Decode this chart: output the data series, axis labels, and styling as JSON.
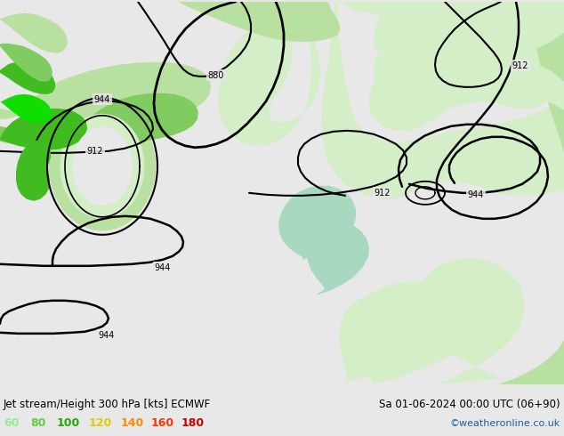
{
  "title_left": "Jet stream/Height 300 hPa [kts] ECMWF",
  "title_right": "Sa 01-06-2024 00:00 UTC (06+90)",
  "credit": "©weatheronline.co.uk",
  "legend_values": [
    "60",
    "80",
    "100",
    "120",
    "140",
    "160",
    "180"
  ],
  "legend_colors": [
    "#90ee90",
    "#66cc44",
    "#22aa00",
    "#ddcc00",
    "#ff8800",
    "#ff3300",
    "#cc0000"
  ],
  "bg_color": "#e8e8e8",
  "land_gray": "#c8c8c8",
  "green_very_light": "#d4eec8",
  "green_light": "#b8e0a0",
  "green_medium": "#80cc60",
  "green_dark": "#40bb20",
  "green_bright": "#10dd00",
  "teal_light": "#a8d8c0",
  "figsize": [
    6.34,
    4.9
  ],
  "dpi": 100
}
